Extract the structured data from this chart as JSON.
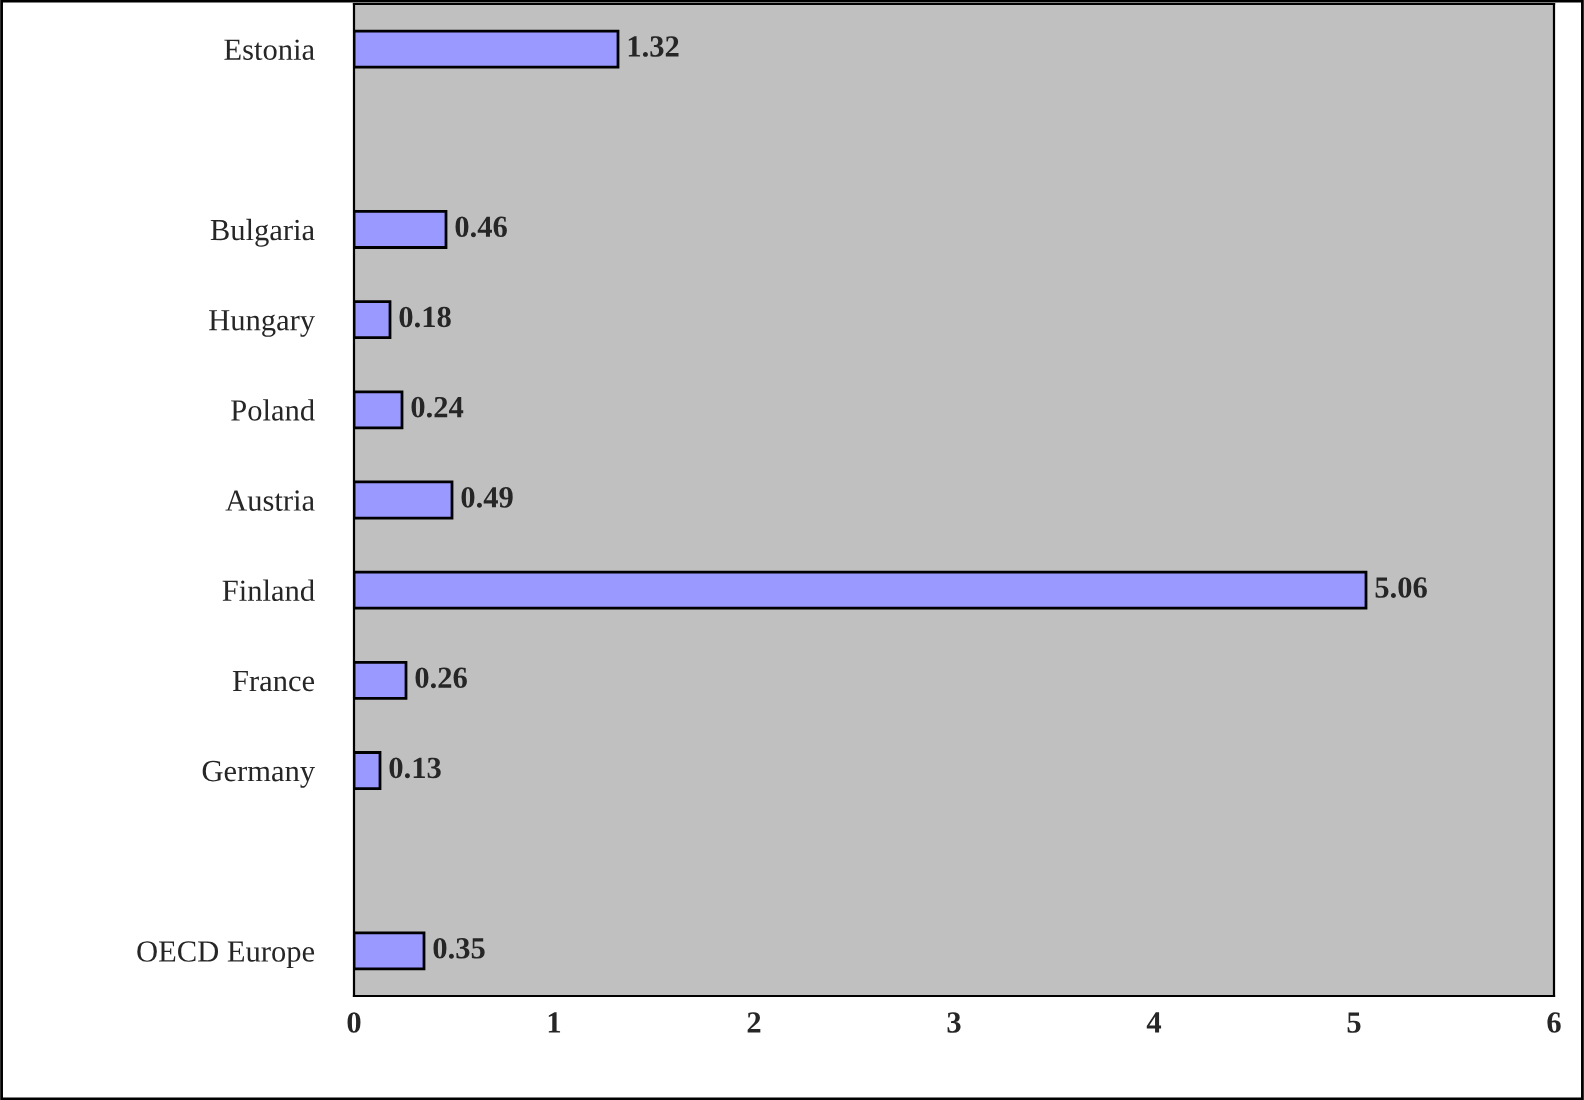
{
  "chart_data": {
    "type": "bar",
    "orientation": "horizontal",
    "categories": [
      "Estonia",
      null,
      "Bulgaria",
      "Hungary",
      "Poland",
      "Austria",
      "Finland",
      "France",
      "Germany",
      null,
      "OECD Europe"
    ],
    "values": [
      1.32,
      null,
      0.46,
      0.18,
      0.24,
      0.49,
      5.06,
      0.26,
      0.13,
      null,
      0.35
    ],
    "color": "#9999ff",
    "xlim": [
      0,
      6
    ],
    "xticks": [
      0,
      1,
      2,
      3,
      4,
      5,
      6
    ],
    "data_labels": true,
    "grid": false,
    "legend": false
  }
}
